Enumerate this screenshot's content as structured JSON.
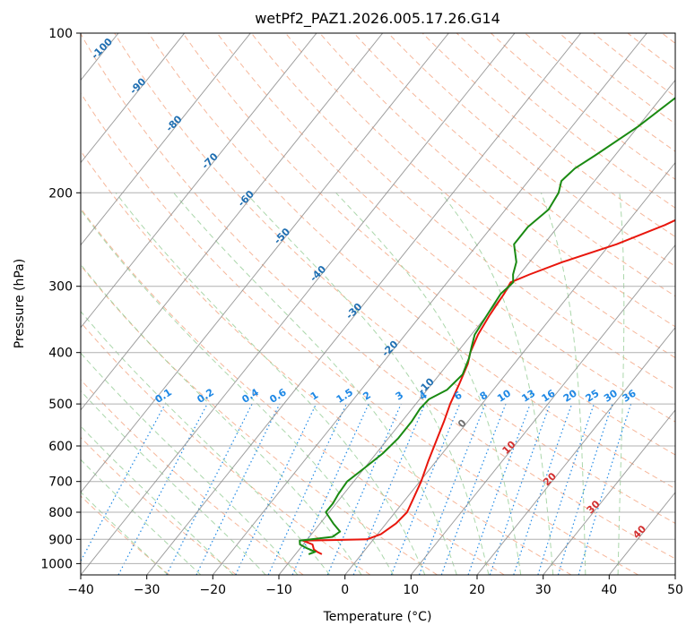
{
  "chart_data": {
    "type": "line",
    "title": "wetPf2_PAZ1.2026.005.17.26.G14",
    "xlabel": "Temperature (°C)",
    "ylabel": "Pressure (hPa)",
    "xlim": [
      -40,
      50
    ],
    "ylim": [
      1050,
      100
    ],
    "x_ticks": [
      -40,
      -30,
      -20,
      -10,
      0,
      10,
      20,
      30,
      40,
      50
    ],
    "x_tick_labels": [
      "−40",
      "−30",
      "−20",
      "−10",
      "0",
      "10",
      "20",
      "30",
      "40",
      "50"
    ],
    "y_ticks": [
      1000,
      900,
      800,
      700,
      600,
      500,
      400,
      300,
      200,
      100
    ],
    "y_tick_labels": [
      "1000",
      "900",
      "800",
      "700",
      "600",
      "500",
      "400",
      "300",
      "200",
      "100"
    ],
    "grid": true,
    "colors": {
      "temperature": "#e8160c",
      "dewpoint": "#1a8a12",
      "mixing_ratio": "#1e88e5",
      "dry_adiabat": "#f4a582",
      "moist_adiabat": "#8fc98f",
      "isotherm": "#8c8c8c",
      "grid": "#b0b0b0"
    },
    "series": [
      {
        "name": "Temperature",
        "color": "#e8160c",
        "points": [
          [
            960,
            -6.0
          ],
          [
            950,
            -7.0
          ],
          [
            940,
            -7.8
          ],
          [
            920,
            -8.6
          ],
          [
            905,
            -10.5
          ],
          [
            900,
            -1.0
          ],
          [
            880,
            0.5
          ],
          [
            840,
            1.5
          ],
          [
            800,
            1.8
          ],
          [
            760,
            1.2
          ],
          [
            700,
            0.2
          ],
          [
            640,
            -1.2
          ],
          [
            580,
            -2.6
          ],
          [
            540,
            -3.6
          ],
          [
            500,
            -4.8
          ],
          [
            460,
            -5.8
          ],
          [
            420,
            -7.0
          ],
          [
            400,
            -8.0
          ],
          [
            370,
            -9.0
          ],
          [
            340,
            -9.6
          ],
          [
            310,
            -10.0
          ],
          [
            295,
            -10.4
          ],
          [
            285,
            -8.5
          ],
          [
            270,
            -5.0
          ],
          [
            250,
            1.0
          ],
          [
            230,
            6.0
          ],
          [
            200,
            12.5
          ],
          [
            180,
            16.5
          ],
          [
            160,
            18.0
          ],
          [
            140,
            20.0
          ],
          [
            120,
            23.0
          ],
          [
            110,
            25.0
          ],
          [
            100,
            26.5
          ]
        ]
      },
      {
        "name": "Dewpoint",
        "color": "#1a8a12",
        "points": [
          [
            960,
            -8.0
          ],
          [
            950,
            -7.3
          ],
          [
            935,
            -9.0
          ],
          [
            920,
            -10.5
          ],
          [
            905,
            -11.0
          ],
          [
            890,
            -6.5
          ],
          [
            870,
            -6.0
          ],
          [
            840,
            -8.0
          ],
          [
            800,
            -10.5
          ],
          [
            770,
            -10.5
          ],
          [
            740,
            -10.8
          ],
          [
            700,
            -11.0
          ],
          [
            660,
            -10.0
          ],
          [
            620,
            -9.0
          ],
          [
            580,
            -8.5
          ],
          [
            540,
            -8.5
          ],
          [
            510,
            -8.8
          ],
          [
            490,
            -8.6
          ],
          [
            470,
            -7.0
          ],
          [
            440,
            -6.5
          ],
          [
            410,
            -7.5
          ],
          [
            390,
            -8.5
          ],
          [
            370,
            -9.5
          ],
          [
            340,
            -10.0
          ],
          [
            310,
            -10.5
          ],
          [
            295,
            -10.0
          ],
          [
            285,
            -11.0
          ],
          [
            270,
            -12.0
          ],
          [
            250,
            -14.5
          ],
          [
            232,
            -14.5
          ],
          [
            215,
            -13.5
          ],
          [
            200,
            -14.0
          ],
          [
            190,
            -15.0
          ],
          [
            180,
            -14.5
          ],
          [
            170,
            -13.0
          ],
          [
            150,
            -10.0
          ],
          [
            130,
            -7.5
          ],
          [
            115,
            -4.0
          ],
          [
            100,
            -1.0
          ]
        ]
      }
    ],
    "mixing_ratio_lines": {
      "values": [
        "0.1",
        "0.2",
        "0.4",
        "0.6",
        "1",
        "1.5",
        "2",
        "3",
        "4",
        "6",
        "8",
        "10",
        "13",
        "16",
        "20",
        "25",
        "30",
        "36"
      ],
      "label_pressure": 500
    },
    "dry_adiabat_labels": [
      "-100",
      "-90",
      "-80",
      "-70",
      "-60",
      "-50",
      "-40",
      "-30",
      "-20",
      "-10",
      "0"
    ],
    "moist_adiabat_labels": [
      "10",
      "20",
      "30",
      "40"
    ]
  }
}
